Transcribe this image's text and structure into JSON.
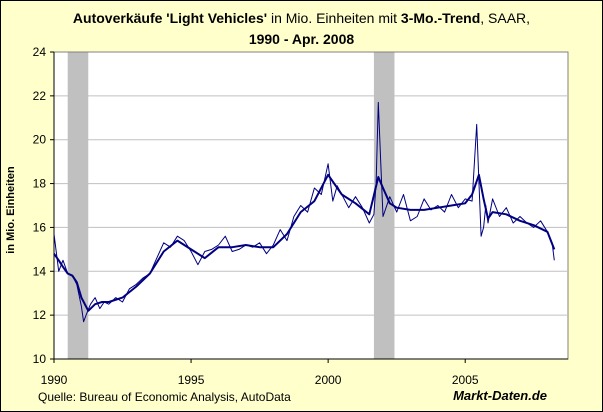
{
  "title": {
    "seg1": "Autoverkäufe 'Light Vehicles'",
    "seg2": " in Mio. Einheiten mit ",
    "seg3": "3-Mo.-Trend",
    "seg4": ", SAAR,",
    "line2": "1990 - Apr. 2008"
  },
  "source": "Quelle: Bureau of Economic Analysis, AutoData",
  "brand": "Markt-Daten.de",
  "colors": {
    "background": "#ffffcc",
    "plot_area": "#ffffff",
    "monthly_line": "#000080",
    "trend_line": "#000080",
    "recession_shade": "#c0c0c0",
    "grid": "#c0c0c0"
  },
  "chart_data": {
    "type": "line",
    "ylabel": "in Mio. Einheiten",
    "xlabel": "",
    "xlim": [
      1990,
      2008.75
    ],
    "ylim": [
      10,
      24
    ],
    "x_ticks": [
      1990,
      1995,
      2000,
      2005
    ],
    "y_ticks": [
      10,
      12,
      14,
      16,
      18,
      20,
      22,
      24
    ],
    "grid": "horizontal",
    "legend": "none",
    "recession_shading": [
      {
        "start": 1990.5,
        "end": 1991.25
      },
      {
        "start": 2001.67,
        "end": 2002.42
      }
    ],
    "series": [
      {
        "style": "thin",
        "x": [
          1990.0,
          1990.17,
          1990.33,
          1990.5,
          1990.67,
          1990.83,
          1991.0,
          1991.08,
          1991.17,
          1991.33,
          1991.5,
          1991.67,
          1991.83,
          1992.0,
          1992.25,
          1992.5,
          1992.75,
          1993.0,
          1993.25,
          1993.5,
          1993.75,
          1994.0,
          1994.25,
          1994.5,
          1994.75,
          1995.0,
          1995.25,
          1995.5,
          1995.75,
          1996.0,
          1996.25,
          1996.5,
          1996.75,
          1997.0,
          1997.25,
          1997.5,
          1997.75,
          1998.0,
          1998.25,
          1998.5,
          1998.75,
          1999.0,
          1999.25,
          1999.5,
          1999.75,
          2000.0,
          2000.17,
          2000.33,
          2000.5,
          2000.75,
          2001.0,
          2001.25,
          2001.5,
          2001.67,
          2001.75,
          2001.83,
          2001.92,
          2002.0,
          2002.25,
          2002.5,
          2002.75,
          2003.0,
          2003.25,
          2003.5,
          2003.75,
          2004.0,
          2004.25,
          2004.5,
          2004.75,
          2005.0,
          2005.25,
          2005.42,
          2005.5,
          2005.58,
          2005.67,
          2005.75,
          2005.83,
          2006.0,
          2006.25,
          2006.5,
          2006.75,
          2007.0,
          2007.25,
          2007.5,
          2007.75,
          2008.0,
          2008.17,
          2008.25
        ],
        "values": [
          15.7,
          14.0,
          14.5,
          13.9,
          13.8,
          13.4,
          12.4,
          11.7,
          12.0,
          12.5,
          12.8,
          12.3,
          12.6,
          12.5,
          12.8,
          12.6,
          13.2,
          13.4,
          13.7,
          13.9,
          14.6,
          15.3,
          15.1,
          15.6,
          15.4,
          14.9,
          14.3,
          14.9,
          15.0,
          15.2,
          15.6,
          14.9,
          15.0,
          15.2,
          15.1,
          15.3,
          14.8,
          15.2,
          15.9,
          15.4,
          16.5,
          17.0,
          16.7,
          17.8,
          17.5,
          18.9,
          17.2,
          17.9,
          17.5,
          16.9,
          17.4,
          16.9,
          16.2,
          16.6,
          18.0,
          21.7,
          18.9,
          16.5,
          17.4,
          16.7,
          17.5,
          16.3,
          16.5,
          17.3,
          16.8,
          17.0,
          16.7,
          17.5,
          16.9,
          17.3,
          17.2,
          20.7,
          18.1,
          15.6,
          16.0,
          17.0,
          16.2,
          17.3,
          16.5,
          16.9,
          16.2,
          16.5,
          16.2,
          16.0,
          16.3,
          15.8,
          15.3,
          14.5
        ]
      },
      {
        "style": "thick",
        "x": [
          1990.0,
          1990.17,
          1990.33,
          1990.5,
          1990.67,
          1990.83,
          1991.0,
          1991.25,
          1991.5,
          1991.75,
          1992.0,
          1992.5,
          1993.0,
          1993.5,
          1994.0,
          1994.5,
          1995.0,
          1995.5,
          1996.0,
          1996.5,
          1997.0,
          1997.5,
          1998.0,
          1998.5,
          1999.0,
          1999.5,
          2000.0,
          2000.5,
          2001.0,
          2001.5,
          2001.83,
          2002.0,
          2002.25,
          2002.5,
          2003.0,
          2003.5,
          2004.0,
          2004.5,
          2005.0,
          2005.25,
          2005.5,
          2005.67,
          2005.83,
          2006.0,
          2006.5,
          2007.0,
          2007.5,
          2008.0,
          2008.25
        ],
        "values": [
          14.8,
          14.5,
          14.2,
          13.9,
          13.8,
          13.5,
          12.8,
          12.2,
          12.5,
          12.6,
          12.6,
          12.8,
          13.3,
          13.9,
          14.9,
          15.4,
          15.0,
          14.6,
          15.1,
          15.1,
          15.2,
          15.1,
          15.1,
          15.7,
          16.7,
          17.2,
          18.4,
          17.5,
          17.1,
          16.6,
          18.3,
          17.8,
          17.1,
          16.9,
          16.8,
          16.8,
          16.9,
          17.0,
          17.1,
          17.5,
          18.4,
          17.3,
          16.4,
          16.7,
          16.6,
          16.3,
          16.1,
          15.8,
          15.0
        ]
      }
    ]
  }
}
